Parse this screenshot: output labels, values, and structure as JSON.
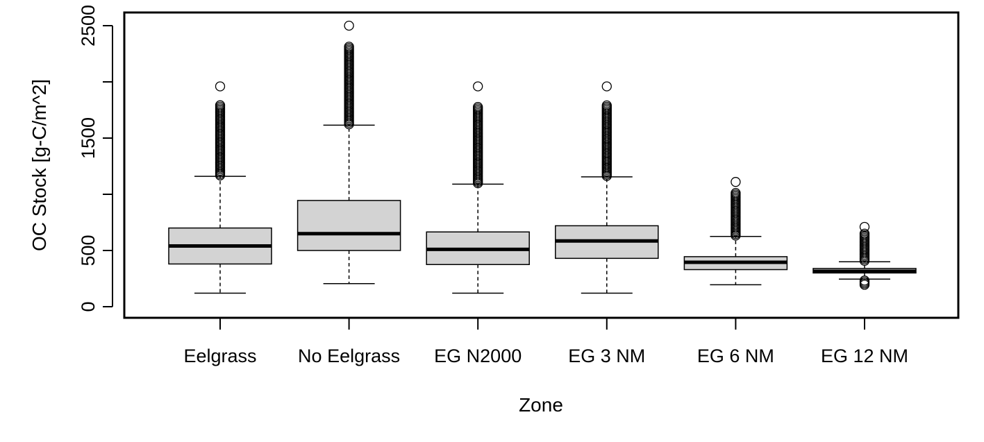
{
  "chart_data": {
    "type": "boxplot",
    "xlabel": "Zone",
    "ylabel": "OC Stock [g-C/m^2]",
    "yticks": [
      0,
      500,
      1500,
      2500
    ],
    "ylim": [
      -100,
      2600
    ],
    "grid": false,
    "colors": {
      "box_fill": "#d3d3d3",
      "stroke": "#000000",
      "background": "#ffffff"
    },
    "categories": [
      "Eelgrass",
      "No Eelgrass",
      "EG N2000",
      "EG 3 NM",
      "EG 6 NM",
      "EG 12 NM"
    ],
    "boxes": [
      {
        "category": "Eelgrass",
        "whisker_low": 120,
        "q1": 380,
        "median": 540,
        "q3": 700,
        "whisker_high": 1160,
        "outlier_max": 1960
      },
      {
        "category": "No Eelgrass",
        "whisker_low": 205,
        "q1": 500,
        "median": 650,
        "q3": 945,
        "whisker_high": 1615,
        "outlier_max": 2500
      },
      {
        "category": "EG N2000",
        "whisker_low": 120,
        "q1": 375,
        "median": 510,
        "q3": 665,
        "whisker_high": 1090,
        "outlier_max": 1960
      },
      {
        "category": "EG 3 NM",
        "whisker_low": 120,
        "q1": 430,
        "median": 585,
        "q3": 720,
        "whisker_high": 1155,
        "outlier_max": 1960
      },
      {
        "category": "EG 6 NM",
        "whisker_low": 195,
        "q1": 330,
        "median": 395,
        "q3": 445,
        "whisker_high": 625,
        "outlier_max": 1110
      },
      {
        "category": "EG 12 NM",
        "whisker_low": 245,
        "q1": 300,
        "median": 315,
        "q3": 340,
        "whisker_high": 400,
        "outlier_min": 195,
        "outlier_max": 710
      }
    ]
  }
}
